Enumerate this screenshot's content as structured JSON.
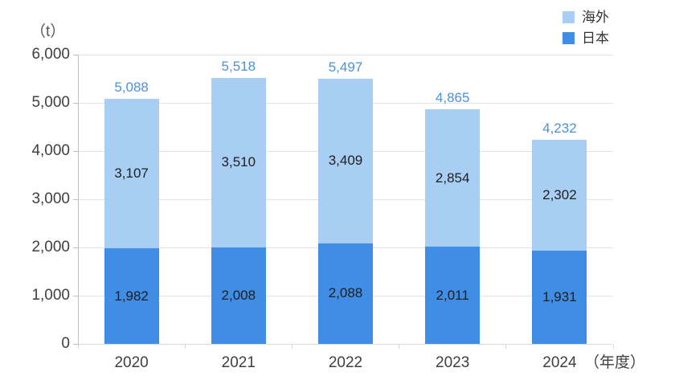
{
  "figure": {
    "unit_label": "（t）",
    "x_suffix_label": "（年度）",
    "legend": {
      "items": [
        {
          "label": "海外",
          "color": "#A9CEF4"
        },
        {
          "label": "日本",
          "color": "#3F8DE4"
        }
      ]
    }
  },
  "chart_data": {
    "type": "bar",
    "stacked": true,
    "title": "",
    "xlabel": "（年度）",
    "ylabel": "（t）",
    "categories": [
      "2020",
      "2021",
      "2022",
      "2023",
      "2024"
    ],
    "series": [
      {
        "name": "日本",
        "color": "#3F8DE4",
        "values": [
          1982,
          2008,
          2088,
          2011,
          1931
        ]
      },
      {
        "name": "海外",
        "color": "#A9CEF4",
        "values": [
          3107,
          3510,
          3409,
          2854,
          2302
        ]
      }
    ],
    "totals": [
      5088,
      5518,
      5497,
      4865,
      4232
    ],
    "total_label_color": "#4B92DE",
    "value_label_color": "#1F1F1F",
    "ylim": [
      0,
      6000
    ],
    "ytick_step": 1000,
    "ytick_labels": [
      "0",
      "1,000",
      "2,000",
      "3,000",
      "4,000",
      "5,000",
      "6,000"
    ],
    "grid": true,
    "legend_position": "top-right",
    "legend_order": [
      "海外",
      "日本"
    ]
  }
}
